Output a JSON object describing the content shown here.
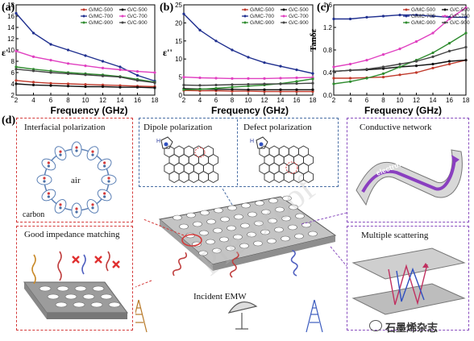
{
  "panels": {
    "a": {
      "label": "(a)",
      "ylabel": "ε'",
      "xlabel": "Frequency (GHz)"
    },
    "b": {
      "label": "(b)",
      "ylabel": "ε''",
      "xlabel": "Frequency (GHz)"
    },
    "c": {
      "label": "(c)",
      "ylabel": "Tanδε",
      "xlabel": "Frequency (GHz)"
    },
    "d": {
      "label": "(d)"
    }
  },
  "legend_labels": [
    "G/MC-500",
    "G/C-500",
    "G/MC-700",
    "G/C-700",
    "G/MC-900",
    "G/C-900"
  ],
  "colors": {
    "G/MC-500": "#c0392b",
    "G/C-500": "#111111",
    "G/MC-700": "#1f2f8f",
    "G/C-700": "#e040c0",
    "G/MC-900": "#2e8b2e",
    "G/C-900": "#444444"
  },
  "chart_data": [
    {
      "type": "line",
      "title": "",
      "xlabel": "Frequency (GHz)",
      "ylabel": "ε'",
      "xlim": [
        2,
        18
      ],
      "ylim": [
        2,
        18
      ],
      "xticks": [
        2,
        4,
        6,
        8,
        10,
        12,
        14,
        16,
        18
      ],
      "yticks": [
        2,
        4,
        6,
        8,
        10,
        12,
        14,
        16,
        18
      ],
      "x": [
        2,
        4,
        6,
        8,
        10,
        12,
        14,
        16,
        18
      ],
      "series": [
        {
          "name": "G/MC-500",
          "values": [
            4.6,
            4.3,
            4.1,
            4.0,
            3.9,
            3.8,
            3.7,
            3.6,
            3.5
          ]
        },
        {
          "name": "G/C-500",
          "values": [
            4.0,
            3.8,
            3.7,
            3.6,
            3.5,
            3.5,
            3.4,
            3.4,
            3.3
          ]
        },
        {
          "name": "G/MC-700",
          "values": [
            16.5,
            13.0,
            11.0,
            10.0,
            9.0,
            8.0,
            7.0,
            5.5,
            4.5
          ]
        },
        {
          "name": "G/C-700",
          "values": [
            9.8,
            8.8,
            8.2,
            7.6,
            7.2,
            6.8,
            6.5,
            6.2,
            6.0
          ]
        },
        {
          "name": "G/MC-900",
          "values": [
            7.0,
            6.6,
            6.3,
            6.0,
            5.8,
            5.6,
            5.3,
            4.8,
            4.3
          ]
        },
        {
          "name": "G/C-900",
          "values": [
            6.6,
            6.3,
            6.0,
            5.8,
            5.6,
            5.4,
            5.2,
            4.6,
            4.2
          ]
        }
      ]
    },
    {
      "type": "line",
      "title": "",
      "xlabel": "Frequency (GHz)",
      "ylabel": "ε''",
      "xlim": [
        2,
        18
      ],
      "ylim": [
        0,
        25
      ],
      "xticks": [
        2,
        4,
        6,
        8,
        10,
        12,
        14,
        16,
        18
      ],
      "yticks": [
        0,
        5,
        10,
        15,
        20,
        25
      ],
      "x": [
        2,
        4,
        6,
        8,
        10,
        12,
        14,
        16,
        18
      ],
      "series": [
        {
          "name": "G/MC-500",
          "values": [
            1.3,
            1.2,
            1.2,
            1.1,
            1.1,
            1.0,
            1.0,
            1.0,
            1.0
          ]
        },
        {
          "name": "G/C-500",
          "values": [
            1.8,
            1.7,
            1.6,
            1.6,
            1.5,
            1.5,
            1.5,
            1.5,
            1.5
          ]
        },
        {
          "name": "G/MC-700",
          "values": [
            22.5,
            18.0,
            15.0,
            12.5,
            10.5,
            9.0,
            8.0,
            7.0,
            6.0
          ]
        },
        {
          "name": "G/C-700",
          "values": [
            5.0,
            4.8,
            4.7,
            4.6,
            4.6,
            4.6,
            4.7,
            4.8,
            4.9
          ]
        },
        {
          "name": "G/MC-900",
          "values": [
            1.5,
            1.6,
            1.9,
            2.2,
            2.5,
            2.8,
            3.2,
            3.8,
            4.5
          ]
        },
        {
          "name": "G/C-900",
          "values": [
            2.8,
            2.7,
            2.8,
            2.9,
            3.0,
            3.1,
            3.1,
            3.2,
            3.3
          ]
        }
      ]
    },
    {
      "type": "line",
      "title": "",
      "xlabel": "Frequency (GHz)",
      "ylabel": "Tanδε",
      "xlim": [
        2,
        18
      ],
      "ylim": [
        0.0,
        1.6
      ],
      "xticks": [
        2,
        4,
        6,
        8,
        10,
        12,
        14,
        16,
        18
      ],
      "yticks": [
        0.0,
        0.4,
        0.8,
        1.2,
        1.6
      ],
      "x": [
        2,
        4,
        6,
        8,
        10,
        12,
        14,
        16,
        18
      ],
      "series": [
        {
          "name": "G/MC-500",
          "values": [
            0.3,
            0.3,
            0.31,
            0.32,
            0.36,
            0.4,
            0.48,
            0.55,
            0.62
          ]
        },
        {
          "name": "G/C-500",
          "values": [
            0.42,
            0.44,
            0.45,
            0.47,
            0.5,
            0.52,
            0.55,
            0.6,
            0.62
          ]
        },
        {
          "name": "G/MC-700",
          "values": [
            1.35,
            1.35,
            1.38,
            1.4,
            1.42,
            1.42,
            1.4,
            1.38,
            1.38
          ]
        },
        {
          "name": "G/C-700",
          "values": [
            0.5,
            0.55,
            0.62,
            0.72,
            0.82,
            0.95,
            1.1,
            1.35,
            1.55
          ]
        },
        {
          "name": "G/MC-900",
          "values": [
            0.2,
            0.24,
            0.3,
            0.38,
            0.5,
            0.62,
            0.75,
            0.92,
            1.1
          ]
        },
        {
          "name": "G/C-900",
          "values": [
            0.42,
            0.44,
            0.46,
            0.5,
            0.55,
            0.6,
            0.68,
            0.78,
            0.85
          ]
        }
      ]
    }
  ],
  "diagram": {
    "interfacial_title": "Interfacial polarization",
    "air_label": "air",
    "carbon_label": "carbon",
    "dipole_title": "Dipole polarization",
    "defect_title": "Defect polarization",
    "conductive_title": "Conductive network",
    "electron_label": "electron",
    "impedance_title": "Good impedance matching",
    "incident_label": "Incident EMW",
    "scattering_title": "Multiple scattering",
    "nh_label": "H",
    "n_label": "N",
    "watermark": "Pre-proof",
    "brand": "石墨烯杂志"
  }
}
